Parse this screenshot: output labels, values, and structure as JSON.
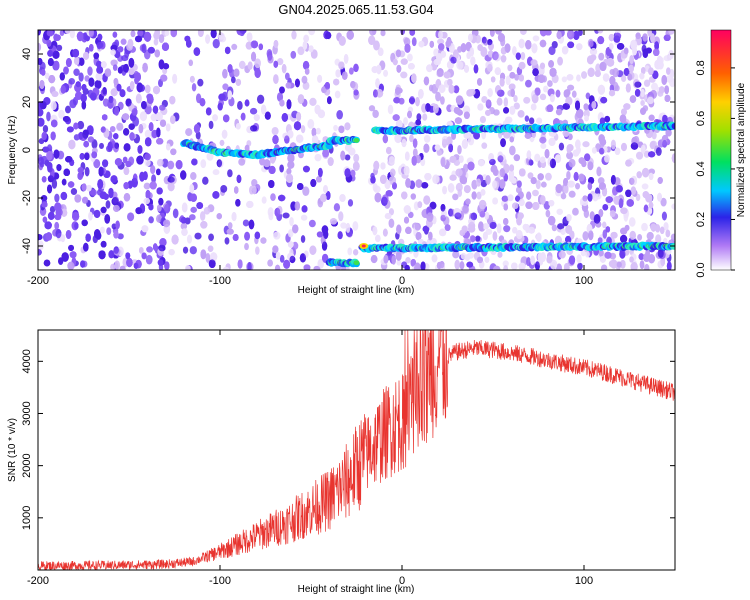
{
  "title": "GN04.2025.065.11.53.G04",
  "chart_data": [
    {
      "type": "heatmap",
      "xlabel": "Height of straight line (km)",
      "ylabel": "Frequency (Hz)",
      "xlim": [
        -200,
        150
      ],
      "ylim": [
        -50,
        50
      ],
      "xticks": [
        "-200",
        "-100",
        "0",
        "100"
      ],
      "yticks": [
        "-40",
        "-20",
        "0",
        "20",
        "40"
      ],
      "colorbar": {
        "label": "Normalized spectral amplitude",
        "range": [
          0,
          0.95
        ],
        "ticks": [
          "0.0",
          "0.2",
          "0.4",
          "0.6",
          "0.8"
        ]
      },
      "features": [
        {
          "x": [
            -120,
            -100,
            -80,
            -60,
            -40
          ],
          "y": [
            3,
            -1,
            -2,
            0,
            2
          ]
        },
        {
          "x": [
            -40,
            -25
          ],
          "y": [
            4,
            4
          ]
        },
        {
          "x": [
            -15,
            150
          ],
          "y": [
            8,
            10
          ]
        },
        {
          "x": [
            -22,
            150
          ],
          "y": [
            -41,
            -40
          ]
        },
        {
          "x": [
            -40,
            -25
          ],
          "y": [
            -47,
            -47
          ]
        }
      ],
      "gap_x": [
        -25,
        -17
      ]
    },
    {
      "type": "line",
      "xlabel": "Height of straight line (km)",
      "ylabel": "SNR (10 * v/v)",
      "xlim": [
        -200,
        150
      ],
      "ylim": [
        0,
        4600
      ],
      "xticks": [
        "-200",
        "-100",
        "0",
        "100"
      ],
      "yticks": [
        "1000",
        "2000",
        "3000",
        "4000"
      ],
      "color": "#e8342f",
      "trend": {
        "x": [
          -200,
          -160,
          -130,
          -115,
          -100,
          -80,
          -60,
          -40,
          -30,
          -20,
          -10,
          0,
          10,
          15,
          20,
          30,
          40,
          50,
          70,
          90,
          110,
          130,
          150
        ],
        "y": [
          80,
          90,
          110,
          160,
          350,
          650,
          950,
          1350,
          1700,
          2200,
          2600,
          2900,
          3500,
          3800,
          4000,
          4180,
          4250,
          4220,
          4100,
          3950,
          3800,
          3600,
          3400
        ]
      }
    }
  ]
}
